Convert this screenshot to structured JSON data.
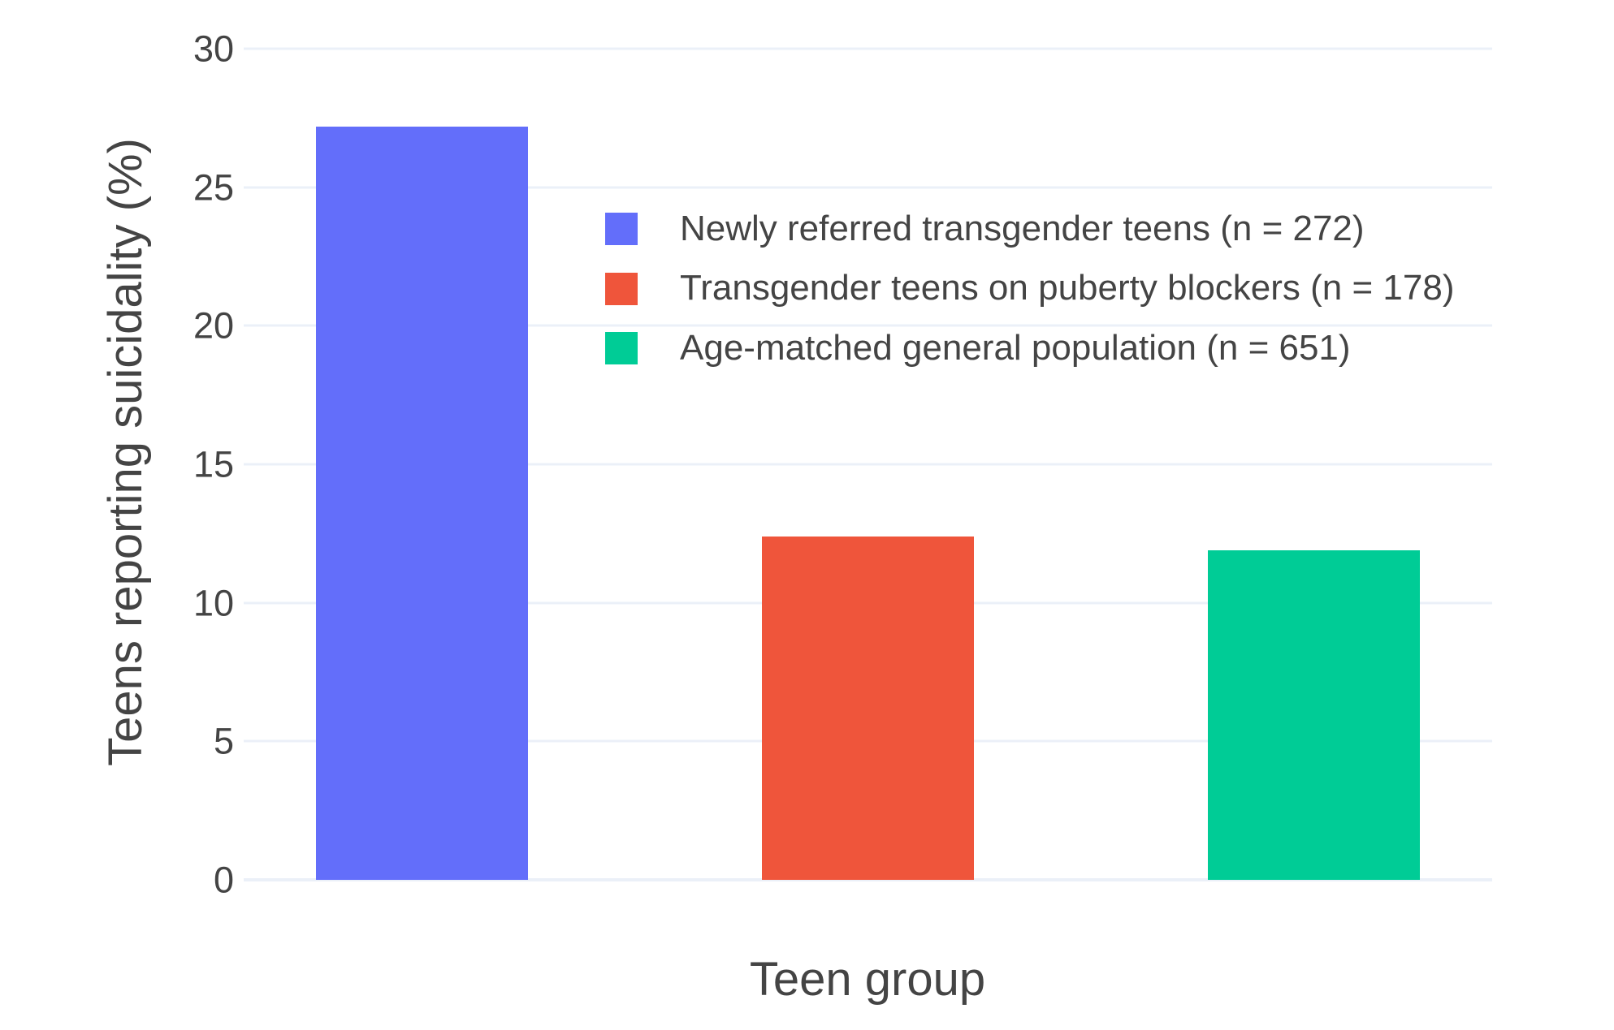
{
  "chart_data": {
    "type": "bar",
    "title": "",
    "xlabel": "Teen group",
    "ylabel": "Teens reporting suicidality (%)",
    "categories": [
      "Newly referred transgender teens (n = 272)",
      "Transgender teens on puberty blockers (n = 178)",
      "Age-matched general population (n = 651)"
    ],
    "values": [
      27.2,
      12.4,
      11.9
    ],
    "colors": [
      "#636EFA",
      "#EF553B",
      "#00CC96"
    ],
    "ylim": [
      0,
      30
    ],
    "yticks": [
      0,
      5,
      10,
      15,
      20,
      25,
      30
    ],
    "grid": "horizontal",
    "grid_color": "#EBF0F8",
    "text_color": "#444444",
    "background_color": "#FFFFFF",
    "legend_position": "inside top, left of center"
  }
}
